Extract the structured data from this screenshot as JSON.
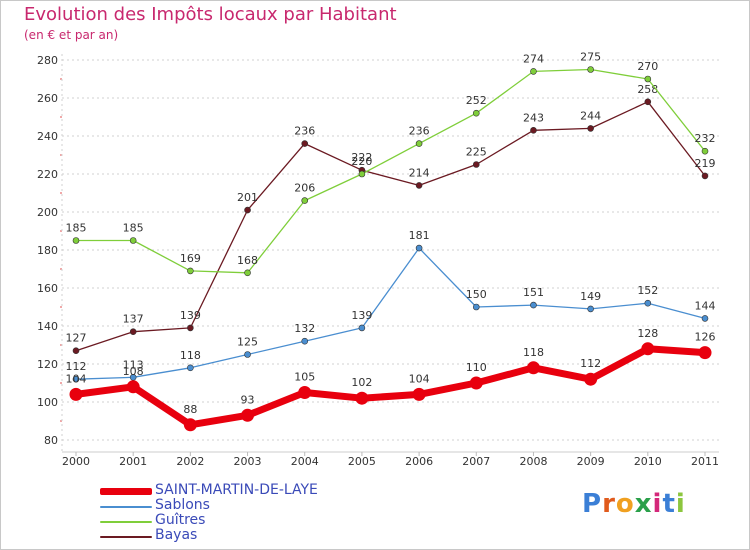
{
  "header": {
    "title": "Evolution des Impôts locaux par Habitant",
    "subtitle": "(en € et par an)"
  },
  "logo": {
    "text": "Proxiti",
    "letters": [
      "P",
      "r",
      "o",
      "x",
      "i",
      "t",
      "i"
    ],
    "letter_colors": [
      "#3b7fd6",
      "#e05a1c",
      "#f0a020",
      "#2aa04a",
      "#d4287a",
      "#3b7fd6",
      "#8cc63e"
    ]
  },
  "chart_data": {
    "type": "line",
    "title": "Evolution des Impôts locaux par Habitant",
    "subtitle": "(en € et par an)",
    "xlabel": "",
    "ylabel": "",
    "categories": [
      "2000",
      "2001",
      "2002",
      "2003",
      "2004",
      "2005",
      "2006",
      "2007",
      "2008",
      "2009",
      "2010",
      "2011"
    ],
    "ylim": [
      80,
      280
    ],
    "yticks": [
      80,
      100,
      120,
      140,
      160,
      180,
      200,
      220,
      240,
      260,
      280
    ],
    "grid": "horizontal dashed",
    "legend_position": "bottom-left",
    "series": [
      {
        "name": "Bayas",
        "color": "#6b1a22",
        "values": [
          127,
          137,
          139,
          201,
          236,
          222,
          214,
          225,
          243,
          244,
          258,
          219
        ],
        "labels": [
          "127",
          "137",
          "139",
          "201",
          "236",
          "222",
          "214",
          "225",
          "243",
          "244",
          "258",
          "219"
        ]
      },
      {
        "name": "Guîtres",
        "color": "#7fce3a",
        "values": [
          185,
          185,
          169,
          168,
          206,
          220,
          236,
          252,
          274,
          275,
          270,
          232
        ],
        "labels": [
          "185",
          "185",
          "169",
          "168",
          "206",
          "220",
          "236",
          "252",
          "274",
          "275",
          "270",
          "232"
        ]
      },
      {
        "name": "Sablons",
        "color": "#4a8ed0",
        "values": [
          112,
          113,
          118,
          125,
          132,
          139,
          181,
          150,
          151,
          149,
          152,
          144
        ],
        "labels": [
          "112",
          "113",
          "118",
          "125",
          "132",
          "139",
          "181",
          "150",
          "151",
          "149",
          "152",
          "144"
        ]
      },
      {
        "name": "SAINT-MARTIN-DE-LAYE",
        "color": "#e8000e",
        "values": [
          104,
          108,
          88,
          93,
          105,
          102,
          104,
          110,
          118,
          112,
          128,
          126
        ],
        "labels": [
          "104",
          "108",
          "88",
          "93",
          "105",
          "102",
          "104",
          "110",
          "118",
          "112",
          "128",
          "126"
        ]
      }
    ],
    "legend": [
      "SAINT-MARTIN-DE-LAYE",
      "Sablons",
      "Guîtres",
      "Bayas"
    ]
  }
}
